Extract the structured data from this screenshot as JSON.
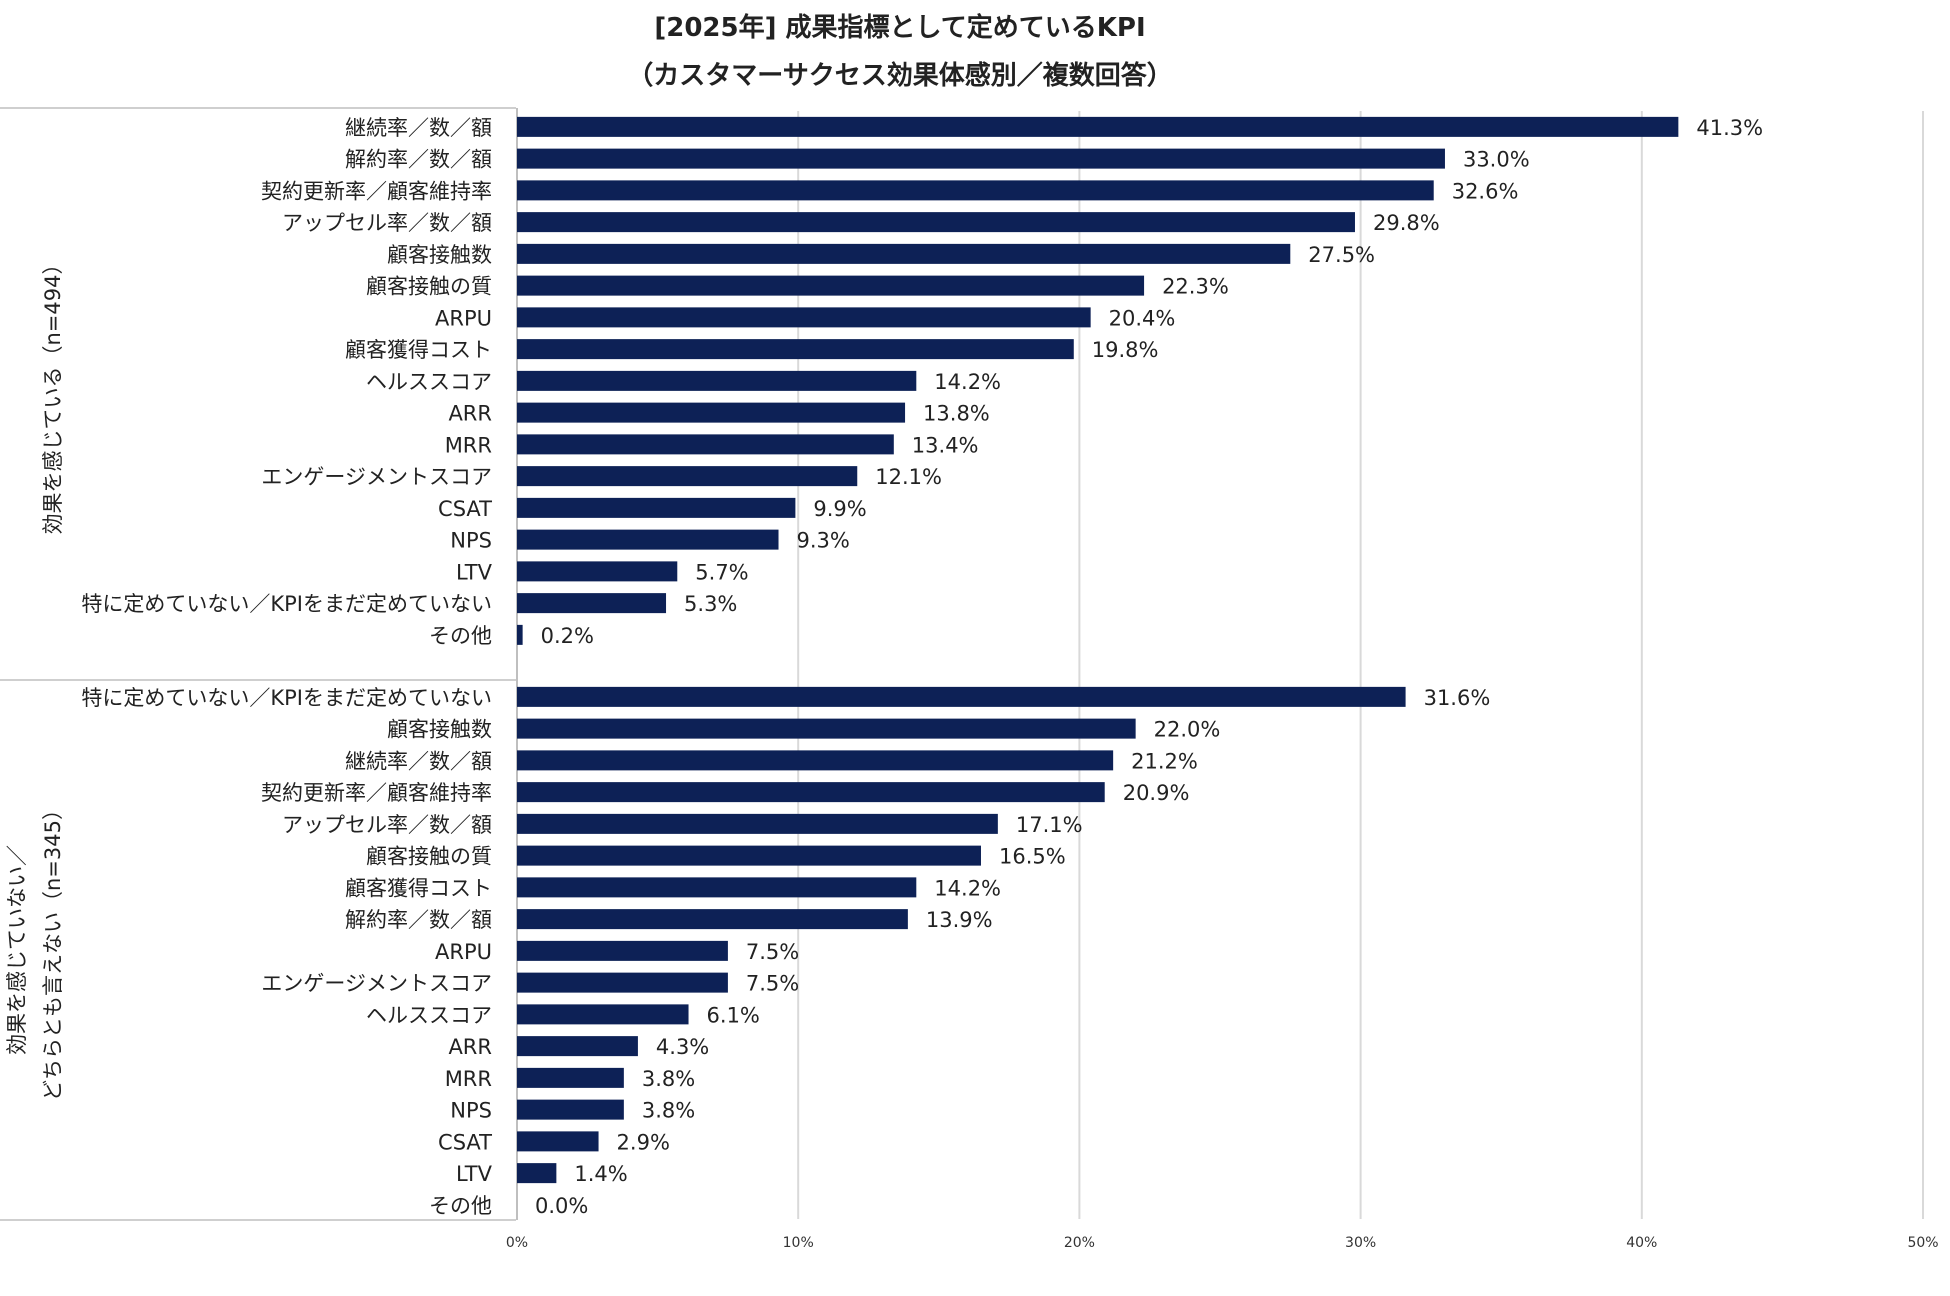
{
  "chart_data": {
    "type": "bar",
    "orientation": "horizontal",
    "title": "[2025年] 成果指標として定めているKPI",
    "subtitle": "（カスタマーサクセス効果体感別／複数回答）",
    "xlabel": "",
    "ylabel": "",
    "xlim": [
      0,
      50
    ],
    "x_ticks": [
      0,
      10,
      20,
      30,
      40,
      50
    ],
    "x_tick_labels": [
      "0%",
      "10%",
      "20%",
      "30%",
      "40%",
      "50%"
    ],
    "value_suffix": "%",
    "grid": true,
    "legend": "none",
    "bar_color": "#0d2156",
    "groups": [
      {
        "name": "効果を感じている（n=494）",
        "categories": [
          "継続率／数／額",
          "解約率／数／額",
          "契約更新率／顧客維持率",
          "アップセル率／数／額",
          "顧客接触数",
          "顧客接触の質",
          "ARPU",
          "顧客獲得コスト",
          "ヘルススコア",
          "ARR",
          "MRR",
          "エンゲージメントスコア",
          "CSAT",
          "NPS",
          "LTV",
          "特に定めていない／KPIをまだ定めていない",
          "その他"
        ],
        "values": [
          41.3,
          33.0,
          32.6,
          29.8,
          27.5,
          22.3,
          20.4,
          19.8,
          14.2,
          13.8,
          13.4,
          12.1,
          9.9,
          9.3,
          5.7,
          5.3,
          0.2
        ]
      },
      {
        "name": "効果を感じていない／どちらとも言えない（n=345）",
        "name_lines": [
          "効果を感じていない／",
          "どちらとも言えない（n=345）"
        ],
        "categories": [
          "特に定めていない／KPIをまだ定めていない",
          "顧客接触数",
          "継続率／数／額",
          "契約更新率／顧客維持率",
          "アップセル率／数／額",
          "顧客接触の質",
          "顧客獲得コスト",
          "解約率／数／額",
          "ARPU",
          "エンゲージメントスコア",
          "ヘルススコア",
          "ARR",
          "MRR",
          "NPS",
          "CSAT",
          "LTV",
          "その他"
        ],
        "values": [
          31.6,
          22.0,
          21.2,
          20.9,
          17.1,
          16.5,
          14.2,
          13.9,
          7.5,
          7.5,
          6.1,
          4.3,
          3.8,
          3.8,
          2.9,
          1.4,
          0.0
        ]
      }
    ]
  }
}
